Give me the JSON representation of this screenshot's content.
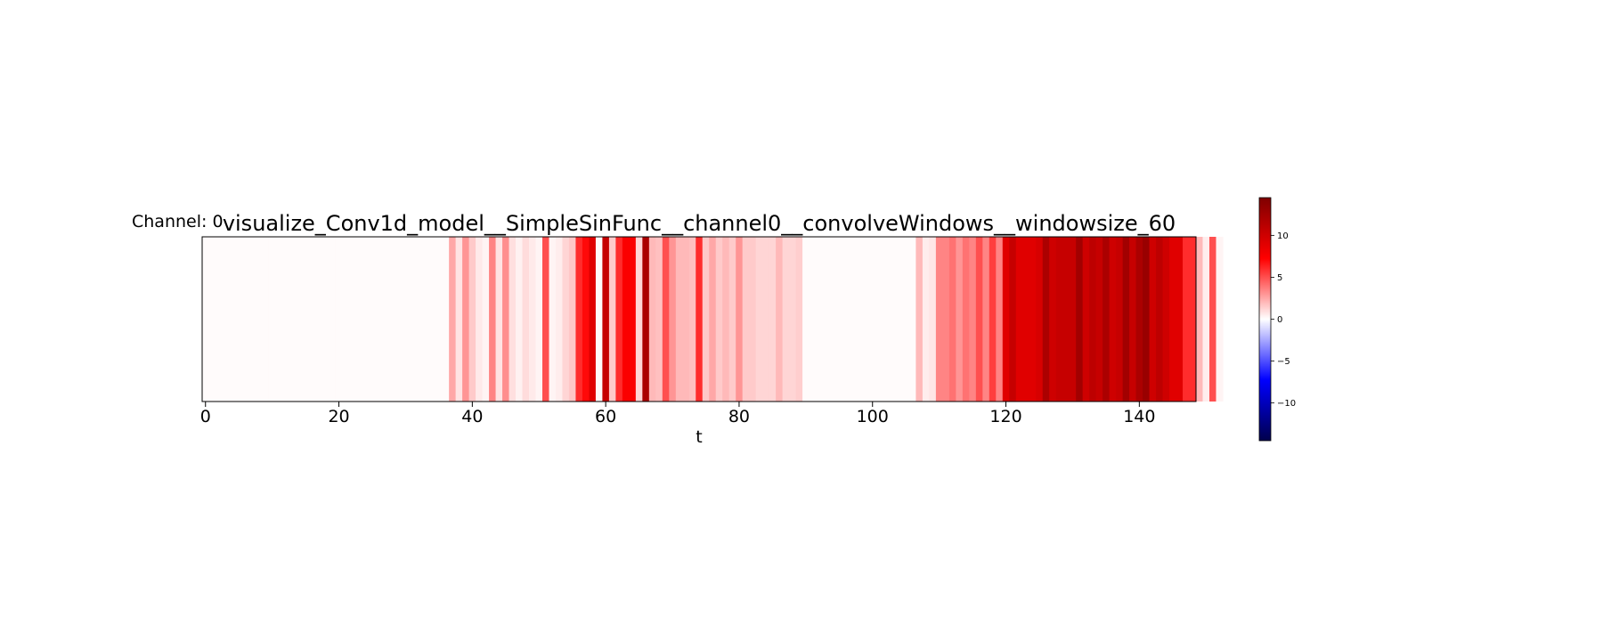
{
  "chart_data": {
    "type": "heatmap",
    "title": "visualize_Conv1d_model__SimpleSinFunc__channel0__convolveWindows__windowsize_60",
    "row_label": "Channel: 0",
    "xlabel": "t",
    "ylabel": "",
    "xlim": [
      -0.5,
      148.5
    ],
    "xticks": [
      0,
      20,
      40,
      60,
      80,
      100,
      120,
      140
    ],
    "colorbar": {
      "cmap": "seismic",
      "vmin": -14.5,
      "vmax": 14.5,
      "ticks": [
        10,
        5,
        0,
        -5,
        -10
      ],
      "tick_labels": [
        "10",
        "5",
        "0",
        "−5",
        "−10"
      ]
    },
    "values": [
      0.1,
      0.1,
      0.1,
      0.1,
      0.1,
      0.1,
      0.1,
      0.1,
      0.1,
      0.1,
      0.1,
      0.1,
      0.1,
      0.1,
      0.1,
      0.1,
      0.1,
      0.1,
      0.1,
      0.1,
      0.1,
      0.1,
      0.1,
      0.1,
      0.1,
      0.1,
      0.1,
      0.1,
      0.1,
      0.1,
      0.1,
      0.1,
      0.1,
      0.1,
      0.1,
      0.1,
      0.1,
      2.5,
      0.8,
      3,
      1.5,
      0.6,
      0.3,
      3.5,
      0.8,
      3.2,
      0.9,
      0.4,
      1,
      0.6,
      0.3,
      5,
      0.3,
      0.5,
      1.2,
      1.6,
      6,
      7,
      9,
      0.2,
      10.5,
      1.5,
      6,
      7.5,
      7.5,
      1.2,
      12,
      2,
      1.8,
      5,
      3,
      2,
      2,
      1.8,
      6,
      1.6,
      2.5,
      1.5,
      2,
      1.5,
      3,
      1.5,
      1.5,
      1.2,
      1.2,
      1.2,
      2,
      1.2,
      1.2,
      1.4,
      0.1,
      0.1,
      0.1,
      0.1,
      0.1,
      0.1,
      0.1,
      0.1,
      0.1,
      0.1,
      0.1,
      0.1,
      0.1,
      0.1,
      0.1,
      0.1,
      0.1,
      2,
      0.5,
      0.7,
      3.5,
      3.5,
      4,
      3,
      4,
      3.5,
      5,
      3.5,
      5.5,
      3.5,
      9,
      10.5,
      9,
      9,
      9,
      9.5,
      12,
      10,
      10.5,
      10.5,
      10.5,
      12.5,
      10,
      11,
      10.5,
      12,
      10,
      10.5,
      12.5,
      10.5,
      12,
      13,
      10,
      11,
      10,
      9,
      9,
      6,
      6,
      2,
      0.5,
      5,
      0.3
    ]
  }
}
